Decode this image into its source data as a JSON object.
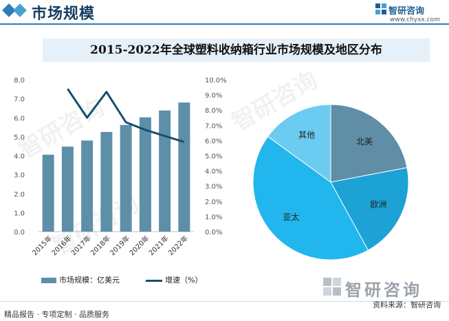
{
  "header": {
    "title": "市场规模",
    "accent": "#2b7fb6"
  },
  "logo": {
    "name": "智研咨询",
    "url": "www.chyxx.com"
  },
  "chart_title": "2015-2022年全球塑料收纳箱行业市场规模及地区分布",
  "chart_data": [
    {
      "type": "bar",
      "categories": [
        "2015年",
        "2016年",
        "2017年",
        "2018年",
        "2019年",
        "2020年",
        "2021年",
        "2022年"
      ],
      "series": [
        {
          "name": "市场规模：亿美元",
          "type": "bar",
          "axis": "left",
          "color": "#5d8fa8",
          "values": [
            4.05,
            4.48,
            4.8,
            5.25,
            5.62,
            6.02,
            6.38,
            6.8
          ]
        },
        {
          "name": "增速（%）",
          "type": "line",
          "axis": "right",
          "color": "#164f70",
          "values": [
            null,
            9.4,
            7.5,
            9.2,
            7.2,
            6.7,
            6.3,
            5.9
          ]
        }
      ],
      "ylim": [
        0,
        8
      ],
      "yticks": [
        "0.0",
        "1.0",
        "2.0",
        "3.0",
        "4.0",
        "5.0",
        "6.0",
        "7.0",
        "8.0"
      ],
      "y2lim": [
        0,
        10
      ],
      "y2ticks": [
        "0.0%",
        "1.0%",
        "2.0%",
        "3.0%",
        "4.0%",
        "5.0%",
        "6.0%",
        "7.0%",
        "8.0%",
        "9.0%",
        "10.0%"
      ],
      "legend": "bottom",
      "grid": false
    },
    {
      "type": "pie",
      "slices": [
        {
          "label": "北美",
          "value": 22,
          "color": "#5f8ea6"
        },
        {
          "label": "欧洲",
          "value": 20,
          "color": "#1da2d6"
        },
        {
          "label": "亚太",
          "value": 43,
          "color": "#22b6ee"
        },
        {
          "label": "其他",
          "value": 15,
          "color": "#6ccbf0"
        }
      ]
    }
  ],
  "watermark": "智研咨询",
  "footer": {
    "left": "精品报告 · 专项定制 · 品质服务",
    "right": "资料来源：智研咨询"
  }
}
